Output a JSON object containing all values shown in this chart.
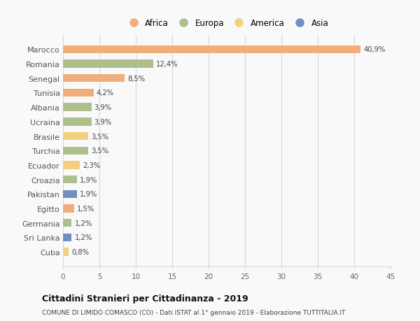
{
  "countries": [
    "Marocco",
    "Romania",
    "Senegal",
    "Tunisia",
    "Albania",
    "Ucraina",
    "Brasile",
    "Turchia",
    "Ecuador",
    "Croazia",
    "Pakistan",
    "Egitto",
    "Germania",
    "Sri Lanka",
    "Cuba"
  ],
  "values": [
    40.9,
    12.4,
    8.5,
    4.2,
    3.9,
    3.9,
    3.5,
    3.5,
    2.3,
    1.9,
    1.9,
    1.5,
    1.2,
    1.2,
    0.8
  ],
  "labels": [
    "40,9%",
    "12,4%",
    "8,5%",
    "4,2%",
    "3,9%",
    "3,9%",
    "3,5%",
    "3,5%",
    "2,3%",
    "1,9%",
    "1,9%",
    "1,5%",
    "1,2%",
    "1,2%",
    "0,8%"
  ],
  "continents": [
    "Africa",
    "Europa",
    "Africa",
    "Africa",
    "Europa",
    "Europa",
    "America",
    "Europa",
    "America",
    "Europa",
    "Asia",
    "Africa",
    "Europa",
    "Asia",
    "America"
  ],
  "colors": {
    "Africa": "#F2AE7A",
    "Europa": "#ADBF8C",
    "America": "#F2D080",
    "Asia": "#6E8FC0"
  },
  "legend_order": [
    "Africa",
    "Europa",
    "America",
    "Asia"
  ],
  "xlim": [
    0,
    45
  ],
  "xticks": [
    0,
    5,
    10,
    15,
    20,
    25,
    30,
    35,
    40,
    45
  ],
  "title": "Cittadini Stranieri per Cittadinanza - 2019",
  "subtitle": "COMUNE DI LIMIDO COMASCO (CO) - Dati ISTAT al 1° gennaio 2019 - Elaborazione TUTTITALIA.IT",
  "background_color": "#f9f9f9",
  "grid_color": "#d8d8d8"
}
